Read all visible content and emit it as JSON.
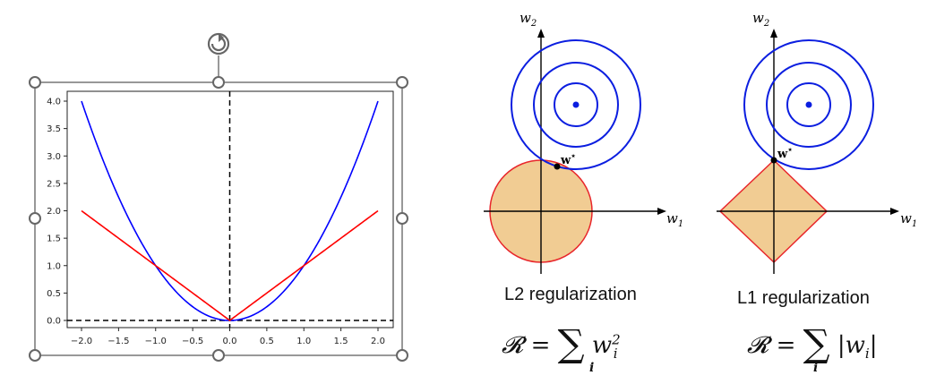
{
  "plot": {
    "x_ticks": [
      "−2.0",
      "−1.5",
      "−1.0",
      "−0.5",
      "0.0",
      "0.5",
      "1.0",
      "1.5",
      "2.0"
    ],
    "y_ticks": [
      "0.0",
      "0.5",
      "1.0",
      "1.5",
      "2.0",
      "2.5",
      "3.0",
      "3.5",
      "4.0"
    ],
    "xlim": [
      -2.0,
      2.0
    ],
    "ylim": [
      0.0,
      4.0
    ],
    "series": [
      {
        "function": "x^2",
        "color": "#0000ff"
      },
      {
        "function": "|x|",
        "color": "#ff0000"
      }
    ],
    "dashed_color": "#000000"
  },
  "l2": {
    "axis_x_label": "w",
    "axis_x_sub": "1",
    "axis_y_label": "w",
    "axis_y_sub": "2",
    "point_label": "w*",
    "caption": "L2 regularization",
    "formula_lhs": "𝓡",
    "formula_eq": "=",
    "formula_sum": "∑",
    "formula_sub": "i",
    "formula_term": "w",
    "formula_term_sub": "i",
    "formula_term_sup": "2"
  },
  "l1": {
    "axis_x_label": "w",
    "axis_x_sub": "1",
    "axis_y_label": "w",
    "axis_y_sub": "2",
    "point_label": "w*",
    "caption": "L1 regularization",
    "formula_lhs": "𝓡",
    "formula_eq": "=",
    "formula_sum": "∑",
    "formula_sub": "i",
    "formula_term": "|w",
    "formula_term_sub": "i",
    "formula_term_end": "|"
  },
  "colors": {
    "contour": "#0b1ee0",
    "constraint_fill": "#f1cc93",
    "constraint_stroke": "#e8262b",
    "handle": "#666666"
  }
}
